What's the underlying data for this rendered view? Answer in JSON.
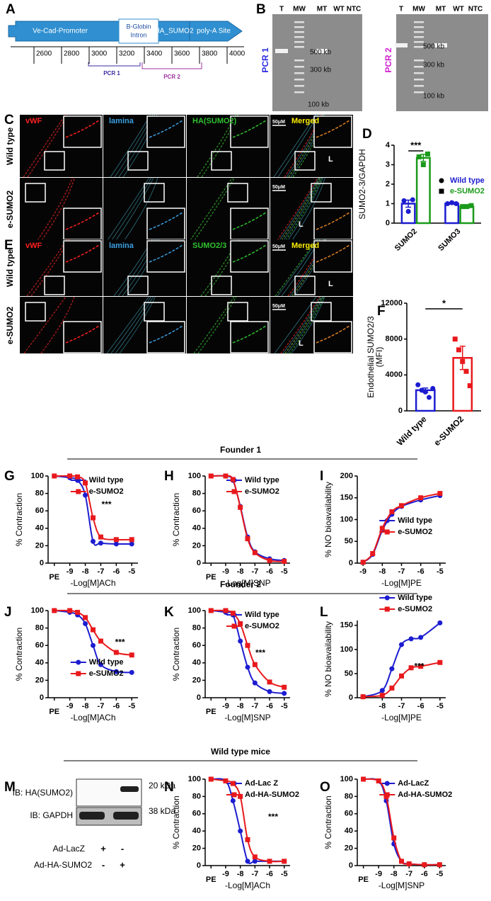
{
  "panel_letters": [
    "A",
    "B",
    "C",
    "D",
    "E",
    "F",
    "G",
    "H",
    "I",
    "J",
    "K",
    "L",
    "M",
    "N",
    "O"
  ],
  "sections": [
    "Founder 1",
    "Founder 2",
    "Wild type mice"
  ],
  "construct": {
    "segments": [
      "Ve-Cad-Promoter",
      [
        "B-Globin",
        "Intron"
      ],
      "HA_SUMO2",
      "poly-A Site"
    ],
    "scale": [
      2600,
      2800,
      3000,
      3200,
      3400,
      3600,
      3800,
      4000
    ],
    "pcr": [
      "PCR 1",
      "PCR 2"
    ]
  },
  "gels": [
    {
      "label": "PCR 1",
      "lanes": [
        "T",
        "MW",
        "MT",
        "WT",
        "NTC"
      ],
      "markers": [
        "500 kb",
        "300 kb",
        "100 kb"
      ]
    },
    {
      "label": "PCR 2",
      "lanes": [
        "T",
        "MW",
        "MT",
        "WT",
        "NTC"
      ],
      "markers": [
        "500 kb",
        "300 kb",
        "100 kb"
      ]
    }
  ],
  "microscopy": [
    {
      "channels": [
        "vWF",
        "lamina",
        "HA(SUMO2)",
        "Merged"
      ],
      "rows": [
        "Wild type",
        "e-SUMO2"
      ],
      "scale_bar": "50μM",
      "lumen": "L"
    },
    {
      "channels": [
        "vWF",
        "lamina",
        "SUMO2/3",
        "Merged"
      ],
      "rows": [
        "Wild type",
        "e-SUMO2"
      ],
      "scale_bar": "50μM",
      "lumen": "L"
    }
  ],
  "blot": {
    "rows": [
      "IB: HA(SUMO2)",
      "IB: GAPDH"
    ],
    "sizes": [
      "20 kDa",
      "38 kDa"
    ],
    "conditions": [
      {
        "name": "Ad-LacZ",
        "signs": [
          "+",
          "-"
        ]
      },
      {
        "name": "Ad-HA-SUMO2",
        "signs": [
          "-",
          "+"
        ]
      }
    ]
  },
  "chart_data": [
    {
      "type": "bar",
      "ylabel": "SUMO2-3/GAPDH",
      "categories": [
        "SUMO2",
        "SUMO3"
      ],
      "ylim": [
        0,
        4
      ],
      "yticks": [
        0,
        1,
        2,
        3,
        4
      ],
      "annotation": "***",
      "series": [
        {
          "name": "Wild type",
          "color": "#1c1cd0",
          "values": [
            1.0,
            1.0
          ],
          "errors": [
            0.18,
            0.03
          ],
          "points": [
            [
              1.15,
              0.6,
              1.2
            ],
            [
              1.0,
              1.05,
              1.0
            ]
          ]
        },
        {
          "name": "e-SUMO2",
          "color": "#1a9a1a",
          "values": [
            3.35,
            0.85
          ],
          "errors": [
            0.18,
            0.03
          ],
          "points": [
            [
              3.4,
              3.0,
              3.55
            ],
            [
              0.85,
              0.85,
              0.9
            ]
          ]
        }
      ]
    },
    {
      "type": "bar",
      "ylabel": [
        "Endothelial SUMO2/3",
        "(MFI)"
      ],
      "categories": [
        "Wild type",
        "e-SUMO2"
      ],
      "values": [
        2300,
        5900
      ],
      "errors": [
        250,
        1300
      ],
      "colors": [
        "#1c1cd0",
        "#e8191c"
      ],
      "points": [
        [
          2900,
          2300,
          2100,
          1500,
          2500
        ],
        [
          8000,
          6800,
          5500,
          4400,
          2800
        ]
      ],
      "ylim": [
        0,
        12000
      ],
      "yticks": [
        0,
        4000,
        8000,
        12000
      ],
      "annotation": "*"
    },
    {
      "type": "line",
      "xlabel": "-Log[M]ACh",
      "ylabel": "% Contraction",
      "x": [
        -10,
        -9,
        -8.5,
        -8,
        -7.5,
        -7,
        -6,
        -5
      ],
      "xlim": [
        -10.4,
        -4.6
      ],
      "xticks": [
        {
          "value": -10,
          "label": "PE"
        },
        -9,
        -8,
        -7,
        -6,
        -5
      ],
      "ylim": [
        0,
        100
      ],
      "yticks": [
        0,
        20,
        40,
        60,
        80,
        100
      ],
      "legend": "upper right",
      "annotation": "***",
      "series": [
        {
          "name": "Wild type",
          "color": "#1c1cd0",
          "values": [
            100,
            98,
            95,
            78,
            25,
            23,
            22,
            22
          ]
        },
        {
          "name": "e-SUMO2",
          "color": "#e8191c",
          "values": [
            100,
            100,
            99,
            92,
            52,
            30,
            27,
            27
          ]
        }
      ]
    },
    {
      "type": "line",
      "xlabel": "-Log[M]SNP",
      "ylabel": "% Contraction",
      "x": [
        -10,
        -9,
        -8.5,
        -8,
        -7.5,
        -7,
        -6,
        -5
      ],
      "xlim": [
        -10.4,
        -4.6
      ],
      "xticks": [
        {
          "value": -10,
          "label": "PE"
        },
        -9,
        -8,
        -7,
        -6,
        -5
      ],
      "ylim": [
        0,
        100
      ],
      "yticks": [
        0,
        20,
        40,
        60,
        80,
        100
      ],
      "legend": "upper right",
      "series": [
        {
          "name": "Wild type",
          "color": "#1c1cd0",
          "values": [
            100,
            100,
            95,
            65,
            30,
            13,
            5,
            3
          ]
        },
        {
          "name": "e-SUMO2",
          "color": "#e8191c",
          "values": [
            100,
            100,
            96,
            64,
            28,
            12,
            3,
            2
          ]
        }
      ]
    },
    {
      "type": "line",
      "xlabel": "-Log[M]PE",
      "ylabel": "% NO bioavailability",
      "x": [
        -9,
        -8.5,
        -8,
        -7.5,
        -7,
        -6,
        -5
      ],
      "xlim": [
        -9.3,
        -4.7
      ],
      "xticks": [
        -9,
        -8,
        -7,
        -6,
        -5
      ],
      "ylim": [
        0,
        200
      ],
      "yticks": [
        0,
        50,
        100,
        150,
        200
      ],
      "legend": "lower right",
      "series": [
        {
          "name": "Wild type",
          "color": "#1c1cd0",
          "values": [
            2,
            20,
            75,
            112,
            130,
            145,
            155
          ]
        },
        {
          "name": "e-SUMO2",
          "color": "#e8191c",
          "values": [
            2,
            22,
            80,
            118,
            132,
            150,
            160
          ]
        }
      ]
    },
    {
      "type": "line",
      "xlabel": "-Log[M]ACh",
      "ylabel": "% Contraction",
      "x": [
        -10,
        -9,
        -8.5,
        -8,
        -7.5,
        -7,
        -6,
        -5
      ],
      "xlim": [
        -10.4,
        -4.6
      ],
      "xticks": [
        {
          "value": -10,
          "label": "PE"
        },
        -9,
        -8,
        -7,
        -6,
        -5
      ],
      "ylim": [
        0,
        100
      ],
      "yticks": [
        0,
        20,
        40,
        60,
        80,
        100
      ],
      "legend": "lower center",
      "annotation": "***",
      "series": [
        {
          "name": "Wild type",
          "color": "#1c1cd0",
          "values": [
            100,
            98,
            95,
            85,
            60,
            38,
            30,
            29
          ]
        },
        {
          "name": "e-SUMO2",
          "color": "#e8191c",
          "values": [
            100,
            100,
            98,
            92,
            78,
            65,
            52,
            49
          ]
        }
      ]
    },
    {
      "type": "line",
      "xlabel": "-Log[M]SNP",
      "ylabel": "% Contraction",
      "x": [
        -10,
        -9,
        -8.5,
        -8,
        -7.5,
        -7,
        -6,
        -5
      ],
      "xlim": [
        -10.4,
        -4.6
      ],
      "xticks": [
        {
          "value": -10,
          "label": "PE"
        },
        -9,
        -8,
        -7,
        -6,
        -5
      ],
      "ylim": [
        0,
        100
      ],
      "yticks": [
        0,
        20,
        40,
        60,
        80,
        100
      ],
      "legend": "upper right",
      "annotation": "***",
      "series": [
        {
          "name": "Wild type",
          "color": "#1c1cd0",
          "values": [
            100,
            98,
            95,
            65,
            35,
            17,
            7,
            5
          ]
        },
        {
          "name": "e-SUMO2",
          "color": "#e8191c",
          "values": [
            100,
            100,
            97,
            85,
            60,
            38,
            18,
            12
          ]
        }
      ]
    },
    {
      "type": "line",
      "xlabel": "-Log[M]PE",
      "ylabel": "% NO bioavailability",
      "x": [
        -9,
        -8,
        -7.5,
        -7,
        -6.5,
        -6,
        -5
      ],
      "xlim": [
        -9.3,
        -4.7
      ],
      "xticks": [
        -8,
        -7,
        -6,
        -5
      ],
      "ylim": [
        0,
        160
      ],
      "yticks": [
        0,
        50,
        100,
        150
      ],
      "legend": "top",
      "annotation": "***",
      "series": [
        {
          "name": "Wild type",
          "color": "#1c1cd0",
          "values": [
            2,
            15,
            60,
            110,
            122,
            125,
            155
          ]
        },
        {
          "name": "e-SUMO2",
          "color": "#e8191c",
          "values": [
            2,
            5,
            20,
            45,
            62,
            65,
            73
          ]
        }
      ]
    },
    {
      "type": "line",
      "xlabel": "-Log[M]ACh",
      "ylabel": "% Contraction",
      "x": [
        -10,
        -9,
        -8.5,
        -8,
        -7.5,
        -7,
        -6,
        -5
      ],
      "xlim": [
        -10.4,
        -4.6
      ],
      "xticks": [
        {
          "value": -10,
          "label": "PE"
        },
        -9,
        -8,
        -7,
        -6,
        -5
      ],
      "ylim": [
        0,
        100
      ],
      "yticks": [
        0,
        20,
        40,
        60,
        80,
        100
      ],
      "legend": "upper right",
      "annotation": "***",
      "series": [
        {
          "name": "Ad-Lac Z",
          "color": "#1c1cd0",
          "values": [
            100,
            98,
            75,
            40,
            5,
            5,
            5,
            5
          ]
        },
        {
          "name": "Ad-HA-SUMO2",
          "color": "#e8191c",
          "values": [
            100,
            98,
            95,
            80,
            30,
            10,
            5,
            5
          ]
        }
      ]
    },
    {
      "type": "line",
      "xlabel": "-Log[M]SNP",
      "ylabel": "% Contraction",
      "x": [
        -10,
        -9,
        -8.5,
        -8,
        -7.5,
        -7,
        -6,
        -5
      ],
      "xlim": [
        -10.4,
        -4.6
      ],
      "xticks": [
        {
          "value": -10,
          "label": "PE"
        },
        -9,
        -8,
        -7,
        -6,
        -5
      ],
      "ylim": [
        0,
        100
      ],
      "yticks": [
        0,
        20,
        40,
        60,
        80,
        100
      ],
      "legend": "upper right",
      "series": [
        {
          "name": "Ad-LacZ",
          "color": "#1c1cd0",
          "values": [
            100,
            98,
            75,
            25,
            5,
            2,
            1,
            1
          ]
        },
        {
          "name": "Ad-HA-SUMO2",
          "color": "#e8191c",
          "values": [
            100,
            98,
            80,
            32,
            5,
            2,
            1,
            1
          ]
        }
      ]
    }
  ]
}
